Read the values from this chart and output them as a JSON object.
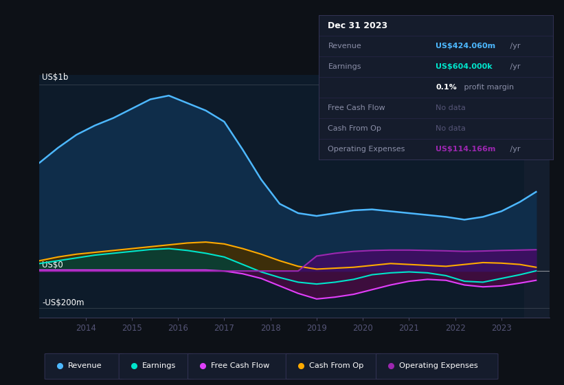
{
  "bg_color": "#0d1117",
  "plot_bg_color": "#0d1b2a",
  "grid_color": "#ffffff",
  "text_color": "#ffffff",
  "dim_text_color": "#8b8fa8",
  "title_label": "US$1b",
  "zero_label": "US$0",
  "neg_label": "-US$200m",
  "years": [
    2013.0,
    2013.4,
    2013.8,
    2014.2,
    2014.6,
    2015.0,
    2015.4,
    2015.8,
    2016.2,
    2016.6,
    2017.0,
    2017.4,
    2017.8,
    2018.2,
    2018.6,
    2019.0,
    2019.4,
    2019.8,
    2020.2,
    2020.6,
    2021.0,
    2021.4,
    2021.8,
    2022.2,
    2022.6,
    2023.0,
    2023.4,
    2023.75
  ],
  "revenue": [
    580,
    660,
    730,
    780,
    820,
    870,
    920,
    940,
    900,
    860,
    800,
    650,
    490,
    360,
    310,
    295,
    310,
    325,
    330,
    320,
    310,
    300,
    290,
    275,
    290,
    320,
    370,
    424
  ],
  "earnings": [
    40,
    55,
    70,
    85,
    95,
    105,
    115,
    120,
    110,
    95,
    75,
    35,
    -5,
    -35,
    -60,
    -70,
    -60,
    -45,
    -20,
    -10,
    -5,
    -10,
    -25,
    -55,
    -60,
    -40,
    -20,
    0.6
  ],
  "free_cash_flow": [
    5,
    5,
    5,
    5,
    5,
    5,
    5,
    5,
    5,
    5,
    0,
    -15,
    -40,
    -80,
    -120,
    -150,
    -140,
    -125,
    -100,
    -75,
    -55,
    -45,
    -50,
    -75,
    -85,
    -80,
    -65,
    -50
  ],
  "cash_from_op": [
    55,
    75,
    90,
    100,
    110,
    120,
    130,
    140,
    150,
    155,
    145,
    120,
    90,
    55,
    25,
    10,
    15,
    20,
    30,
    40,
    35,
    30,
    25,
    35,
    45,
    42,
    35,
    20
  ],
  "operating_expenses": [
    0,
    0,
    0,
    0,
    0,
    0,
    0,
    0,
    0,
    0,
    0,
    0,
    0,
    0,
    0,
    80,
    95,
    105,
    110,
    112,
    112,
    110,
    108,
    105,
    107,
    110,
    112,
    114
  ],
  "revenue_color": "#4db8ff",
  "earnings_color": "#00e5cc",
  "fcf_color": "#e040fb",
  "cfop_color": "#ffaa00",
  "opex_color": "#9c27b0",
  "revenue_fill": "#0f2d4a",
  "earnings_fill": "#0d3d30",
  "fcf_fill": "#3d0d3d",
  "cfop_fill": "#3d2e0a",
  "opex_fill": "#3a1060",
  "dark_fill": "#0a1520",
  "ylim_min": -250,
  "ylim_max": 1050,
  "xtick_years": [
    2014,
    2015,
    2016,
    2017,
    2018,
    2019,
    2020,
    2021,
    2022,
    2023
  ],
  "legend_items": [
    "Revenue",
    "Earnings",
    "Free Cash Flow",
    "Cash From Op",
    "Operating Expenses"
  ],
  "legend_colors": [
    "#4db8ff",
    "#00e5cc",
    "#e040fb",
    "#ffaa00",
    "#9c27b0"
  ],
  "info_title": "Dec 31 2023",
  "info_rows": [
    {
      "label": "Revenue",
      "value": "US$424.060m",
      "suffix": " /yr",
      "vcolor": "#4db8ff",
      "is_nodata": false
    },
    {
      "label": "Earnings",
      "value": "US$604.000k",
      "suffix": " /yr",
      "vcolor": "#00e5cc",
      "is_nodata": false
    },
    {
      "label": "",
      "value": "0.1%",
      "suffix": " profit margin",
      "vcolor": "#ffffff",
      "is_nodata": false
    },
    {
      "label": "Free Cash Flow",
      "value": "No data",
      "suffix": "",
      "vcolor": "#555577",
      "is_nodata": true
    },
    {
      "label": "Cash From Op",
      "value": "No data",
      "suffix": "",
      "vcolor": "#555577",
      "is_nodata": true
    },
    {
      "label": "Operating Expenses",
      "value": "US$114.166m",
      "suffix": " /yr",
      "vcolor": "#9c27b0",
      "is_nodata": false
    }
  ]
}
